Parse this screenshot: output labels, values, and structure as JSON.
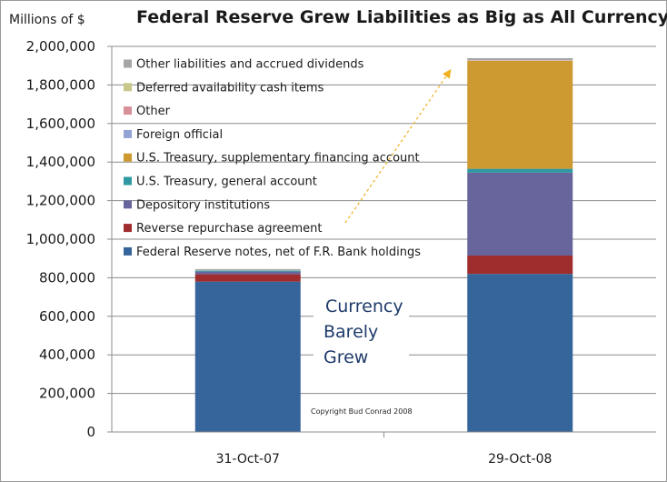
{
  "chart_data": {
    "type": "bar",
    "stacked": true,
    "title": "Federal Reserve Grew Liabilities as Big as All Currency",
    "ylabel": "Millions of $",
    "xlabel": "",
    "ylim": [
      0,
      2000000
    ],
    "yticks": [
      0,
      200000,
      400000,
      600000,
      800000,
      1000000,
      1200000,
      1400000,
      1600000,
      1800000,
      2000000
    ],
    "ytick_labels": [
      "0",
      "200,000",
      "400,000",
      "600,000",
      "800,000",
      "1,000,000",
      "1,200,000",
      "1,400,000",
      "1,600,000",
      "1,800,000",
      "2,000,000"
    ],
    "categories": [
      "31-Oct-07",
      "29-Oct-08"
    ],
    "grid": true,
    "legend_placement": "top-left (inside plot, reverse stack order)",
    "series": [
      {
        "name": "Federal Reserve notes, net of F.R. Bank holdings",
        "color": "#35659a",
        "values": [
          780000,
          820000
        ]
      },
      {
        "name": "Reverse repurchase agreement",
        "color": "#a02d2d",
        "values": [
          38000,
          95000
        ]
      },
      {
        "name": "Depository institutions",
        "color": "#67659b",
        "values": [
          14000,
          430000
        ]
      },
      {
        "name": "U.S. Treasury, general account",
        "color": "#2f98a0",
        "values": [
          5000,
          20000
        ]
      },
      {
        "name": "U.S. Treasury, supplementary financing account",
        "color": "#cc9a30",
        "values": [
          0,
          560000
        ]
      },
      {
        "name": "Foreign official",
        "color": "#94a3d6",
        "values": [
          1000,
          1000
        ]
      },
      {
        "name": "Other",
        "color": "#d89098",
        "values": [
          1000,
          2000
        ]
      },
      {
        "name": "Deferred availability cash items",
        "color": "#c8c88a",
        "values": [
          1000,
          1000
        ]
      },
      {
        "name": "Other liabilities and accrued dividends",
        "color": "#a6a6a6",
        "values": [
          5000,
          10000
        ]
      }
    ],
    "annotations": {
      "currency_text": [
        "Currency",
        "Barely",
        "Grew"
      ],
      "copyright": "Copyright Bud Conrad 2008"
    }
  }
}
